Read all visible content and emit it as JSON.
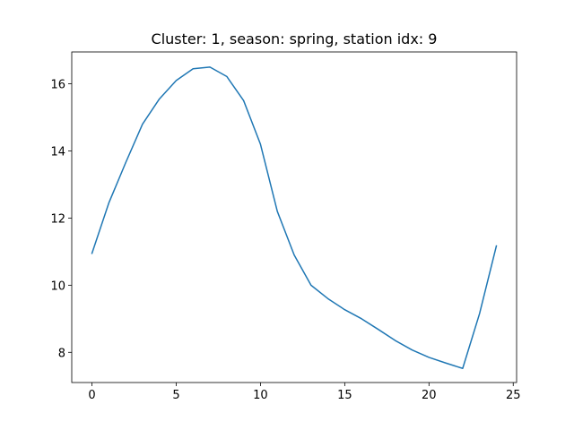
{
  "chart_data": {
    "type": "line",
    "title": "Cluster: 1, season: spring, station idx: 9",
    "xlabel": "",
    "ylabel": "",
    "xlim": [
      -1.2,
      25.2
    ],
    "ylim": [
      7.1,
      16.95
    ],
    "xticks": [
      0,
      5,
      10,
      15,
      20,
      25
    ],
    "yticks": [
      8,
      10,
      12,
      14,
      16
    ],
    "grid": false,
    "series": [
      {
        "color": "#1f77b4",
        "x": [
          0,
          1,
          2,
          3,
          4,
          5,
          6,
          7,
          8,
          9,
          10,
          11,
          12,
          13,
          14,
          15,
          16,
          17,
          18,
          19,
          20,
          21,
          22,
          23,
          24
        ],
        "values": [
          10.95,
          12.45,
          13.65,
          14.8,
          15.55,
          16.1,
          16.45,
          16.5,
          16.22,
          15.5,
          14.2,
          12.2,
          10.9,
          10.0,
          9.6,
          9.27,
          9.0,
          8.68,
          8.35,
          8.07,
          7.85,
          7.68,
          7.52,
          9.15,
          11.17
        ]
      }
    ]
  }
}
